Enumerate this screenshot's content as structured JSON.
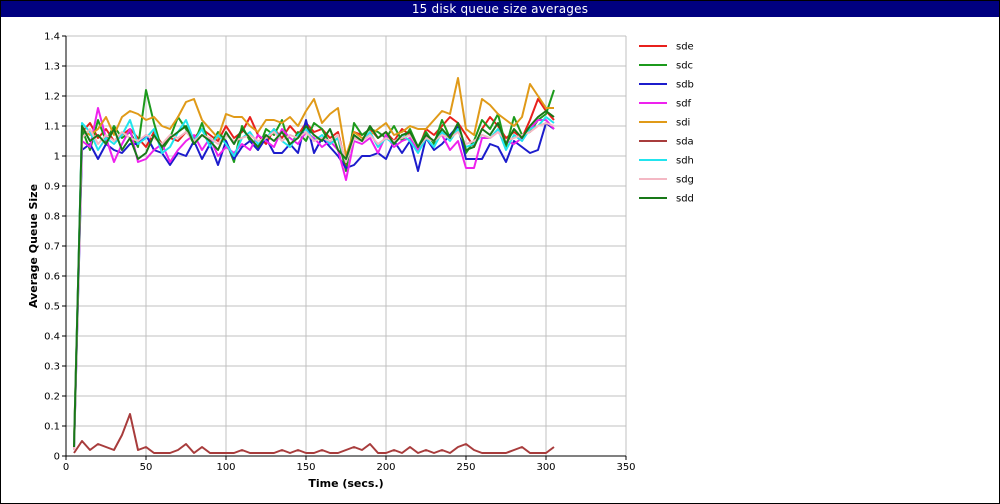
{
  "window": {
    "title": "15 disk queue size averages"
  },
  "colors": {
    "background": "#ffffff",
    "titlebar": "#000080",
    "grid": "#c0c0c0",
    "axis": "#000000"
  },
  "chart_data": {
    "type": "line",
    "title": "15 disk queue size averages",
    "xlabel": "Time (secs.)",
    "ylabel": "Average Queue Size",
    "xlim": [
      0,
      350
    ],
    "ylim": [
      0,
      1.4
    ],
    "xticks": [
      0,
      50,
      100,
      150,
      200,
      250,
      300,
      350
    ],
    "yticks": [
      0,
      0.1,
      0.2,
      0.3,
      0.4,
      0.5,
      0.6,
      0.7,
      0.8,
      0.9,
      1,
      1.1,
      1.2,
      1.3,
      1.4
    ],
    "grid": true,
    "legend": "right",
    "x": [
      5,
      10,
      15,
      20,
      25,
      30,
      35,
      40,
      45,
      50,
      55,
      60,
      65,
      70,
      75,
      80,
      85,
      90,
      95,
      100,
      105,
      110,
      115,
      120,
      125,
      130,
      135,
      140,
      145,
      150,
      155,
      160,
      165,
      170,
      175,
      180,
      185,
      190,
      195,
      200,
      205,
      210,
      215,
      220,
      225,
      230,
      235,
      240,
      245,
      250,
      255,
      260,
      265,
      270,
      275,
      280,
      285,
      290,
      295,
      300,
      305
    ],
    "series": [
      {
        "name": "sde",
        "color": "#e8201c",
        "values": [
          0.02,
          1.08,
          1.11,
          1.06,
          1.09,
          1.05,
          1.07,
          1.09,
          1.06,
          1.03,
          1.08,
          1.04,
          1.06,
          1.05,
          1.08,
          1.06,
          1.09,
          1.07,
          1.05,
          1.1,
          1.06,
          1.08,
          1.13,
          1.07,
          1.04,
          1.09,
          1.06,
          1.1,
          1.07,
          1.11,
          1.08,
          1.09,
          1.06,
          1.08,
          0.97,
          1.08,
          1.07,
          1.09,
          1.06,
          1.08,
          1.05,
          1.09,
          1.07,
          1.02,
          1.09,
          1.07,
          1.1,
          1.13,
          1.11,
          1.07,
          1.03,
          1.09,
          1.13,
          1.1,
          1.06,
          1.08,
          1.06,
          1.12,
          1.19,
          1.15,
          1.12
        ]
      },
      {
        "name": "sdc",
        "color": "#1c9a1c",
        "values": [
          0.03,
          1.09,
          1.02,
          1.12,
          1.05,
          1.1,
          1.06,
          1.08,
          1.03,
          1.22,
          1.11,
          1.02,
          1.06,
          1.13,
          1.09,
          1.04,
          1.11,
          1.03,
          1.08,
          1.05,
          0.98,
          1.1,
          1.05,
          1.02,
          1.09,
          1.07,
          1.12,
          1.03,
          1.08,
          1.05,
          1.11,
          1.09,
          1.04,
          1.06,
          0.95,
          1.11,
          1.07,
          1.09,
          1.08,
          1.06,
          1.1,
          1.05,
          1.09,
          1.03,
          1.08,
          1.04,
          1.12,
          1.06,
          1.09,
          1.01,
          1.05,
          1.12,
          1.09,
          1.14,
          1.03,
          1.13,
          1.07,
          1.08,
          1.12,
          1.14,
          1.22
        ]
      },
      {
        "name": "sdb",
        "color": "#1c1ccc",
        "values": [
          0.02,
          1.02,
          1.04,
          0.99,
          1.04,
          1.02,
          1.01,
          1.04,
          1.04,
          1.07,
          1.02,
          1.01,
          0.97,
          1.01,
          1.0,
          1.05,
          0.99,
          1.04,
          0.97,
          1.05,
          0.99,
          1.03,
          1.05,
          1.02,
          1.06,
          1.01,
          1.01,
          1.04,
          1.01,
          1.12,
          1.01,
          1.06,
          1.03,
          1.0,
          0.96,
          0.97,
          1.0,
          1.0,
          1.01,
          0.99,
          1.05,
          1.01,
          1.05,
          0.95,
          1.06,
          1.02,
          1.04,
          1.07,
          1.1,
          0.99,
          0.99,
          0.99,
          1.04,
          1.03,
          0.98,
          1.05,
          1.03,
          1.01,
          1.02,
          1.11,
          1.09
        ]
      },
      {
        "name": "sdf",
        "color": "#ee22ee",
        "values": [
          0.03,
          1.05,
          1.03,
          1.16,
          1.06,
          0.98,
          1.04,
          1.09,
          0.98,
          0.99,
          1.02,
          1.04,
          0.98,
          1.02,
          1.05,
          1.07,
          1.02,
          1.06,
          1.0,
          1.03,
          1.01,
          1.04,
          1.02,
          1.07,
          1.05,
          1.03,
          1.09,
          1.06,
          1.04,
          1.08,
          1.06,
          1.03,
          1.05,
          1.02,
          0.92,
          1.05,
          1.04,
          1.06,
          1.01,
          1.07,
          1.03,
          1.05,
          1.06,
          1.02,
          1.07,
          1.05,
          1.07,
          1.02,
          1.05,
          0.96,
          0.96,
          1.06,
          1.06,
          1.08,
          1.05,
          1.04,
          1.06,
          1.09,
          1.12,
          1.12,
          1.09
        ]
      },
      {
        "name": "sdi",
        "color": "#e09a18",
        "values": [
          0.04,
          1.09,
          1.07,
          1.09,
          1.13,
          1.07,
          1.13,
          1.15,
          1.14,
          1.12,
          1.13,
          1.1,
          1.09,
          1.13,
          1.18,
          1.19,
          1.12,
          1.09,
          1.06,
          1.14,
          1.13,
          1.13,
          1.1,
          1.08,
          1.12,
          1.12,
          1.11,
          1.13,
          1.1,
          1.15,
          1.19,
          1.11,
          1.14,
          1.16,
          1.0,
          1.08,
          1.06,
          1.07,
          1.09,
          1.11,
          1.07,
          1.08,
          1.1,
          1.09,
          1.09,
          1.12,
          1.15,
          1.14,
          1.26,
          1.09,
          1.07,
          1.19,
          1.17,
          1.14,
          1.12,
          1.1,
          1.13,
          1.24,
          1.2,
          1.16,
          1.16
        ]
      },
      {
        "name": "sda",
        "color": "#a83c3c",
        "values": [
          0.01,
          0.05,
          0.02,
          0.04,
          0.03,
          0.02,
          0.07,
          0.14,
          0.02,
          0.03,
          0.01,
          0.01,
          0.01,
          0.02,
          0.04,
          0.01,
          0.03,
          0.01,
          0.01,
          0.01,
          0.01,
          0.02,
          0.01,
          0.01,
          0.01,
          0.01,
          0.02,
          0.01,
          0.02,
          0.01,
          0.01,
          0.02,
          0.01,
          0.01,
          0.02,
          0.03,
          0.02,
          0.04,
          0.01,
          0.01,
          0.02,
          0.01,
          0.03,
          0.01,
          0.02,
          0.01,
          0.02,
          0.01,
          0.03,
          0.04,
          0.02,
          0.01,
          0.01,
          0.01,
          0.01,
          0.02,
          0.03,
          0.01,
          0.01,
          0.01,
          0.03
        ]
      },
      {
        "name": "sdh",
        "color": "#22e4ee",
        "values": [
          0.03,
          1.11,
          1.08,
          1.02,
          1.06,
          1.04,
          1.07,
          1.12,
          1.04,
          1.06,
          1.09,
          1.01,
          1.03,
          1.08,
          1.12,
          1.05,
          1.09,
          1.03,
          1.07,
          1.04,
          1.0,
          1.06,
          1.08,
          1.04,
          1.06,
          1.09,
          1.05,
          1.03,
          1.07,
          1.09,
          1.05,
          1.07,
          1.04,
          1.06,
          0.98,
          1.06,
          1.05,
          1.08,
          1.03,
          1.06,
          1.04,
          1.07,
          1.05,
          1.01,
          1.06,
          1.03,
          1.08,
          1.05,
          1.09,
          1.03,
          1.04,
          1.07,
          1.06,
          1.09,
          1.02,
          1.07,
          1.05,
          1.09,
          1.1,
          1.13,
          1.11
        ]
      },
      {
        "name": "sdg",
        "color": "#f4b8c4",
        "values": [
          0.02,
          1.06,
          1.09,
          1.04,
          1.07,
          1.05,
          1.08,
          1.06,
          1.05,
          1.07,
          1.06,
          1.04,
          1.07,
          1.06,
          1.08,
          1.05,
          1.07,
          1.06,
          1.04,
          1.07,
          1.05,
          1.06,
          1.07,
          1.05,
          1.06,
          1.08,
          1.05,
          1.07,
          1.06,
          1.08,
          1.05,
          1.06,
          1.05,
          1.07,
          0.98,
          1.06,
          1.05,
          1.07,
          1.04,
          1.06,
          1.05,
          1.06,
          1.07,
          1.03,
          1.06,
          1.05,
          1.07,
          1.06,
          1.08,
          1.04,
          1.05,
          1.07,
          1.06,
          1.08,
          1.05,
          1.06,
          1.07,
          1.08,
          1.1,
          1.11,
          1.1
        ]
      },
      {
        "name": "sdd",
        "color": "#187818",
        "values": [
          0.03,
          1.1,
          1.05,
          1.07,
          1.04,
          1.09,
          1.02,
          1.06,
          0.99,
          1.01,
          1.07,
          1.03,
          1.06,
          1.08,
          1.1,
          1.04,
          1.07,
          1.05,
          1.02,
          1.08,
          1.04,
          1.09,
          1.06,
          1.03,
          1.07,
          1.05,
          1.08,
          1.04,
          1.06,
          1.1,
          1.07,
          1.05,
          1.09,
          1.02,
          0.99,
          1.07,
          1.05,
          1.1,
          1.06,
          1.08,
          1.04,
          1.07,
          1.08,
          1.03,
          1.07,
          1.05,
          1.09,
          1.06,
          1.11,
          1.02,
          1.03,
          1.09,
          1.07,
          1.11,
          1.04,
          1.09,
          1.06,
          1.1,
          1.13,
          1.15,
          1.13
        ]
      }
    ]
  }
}
